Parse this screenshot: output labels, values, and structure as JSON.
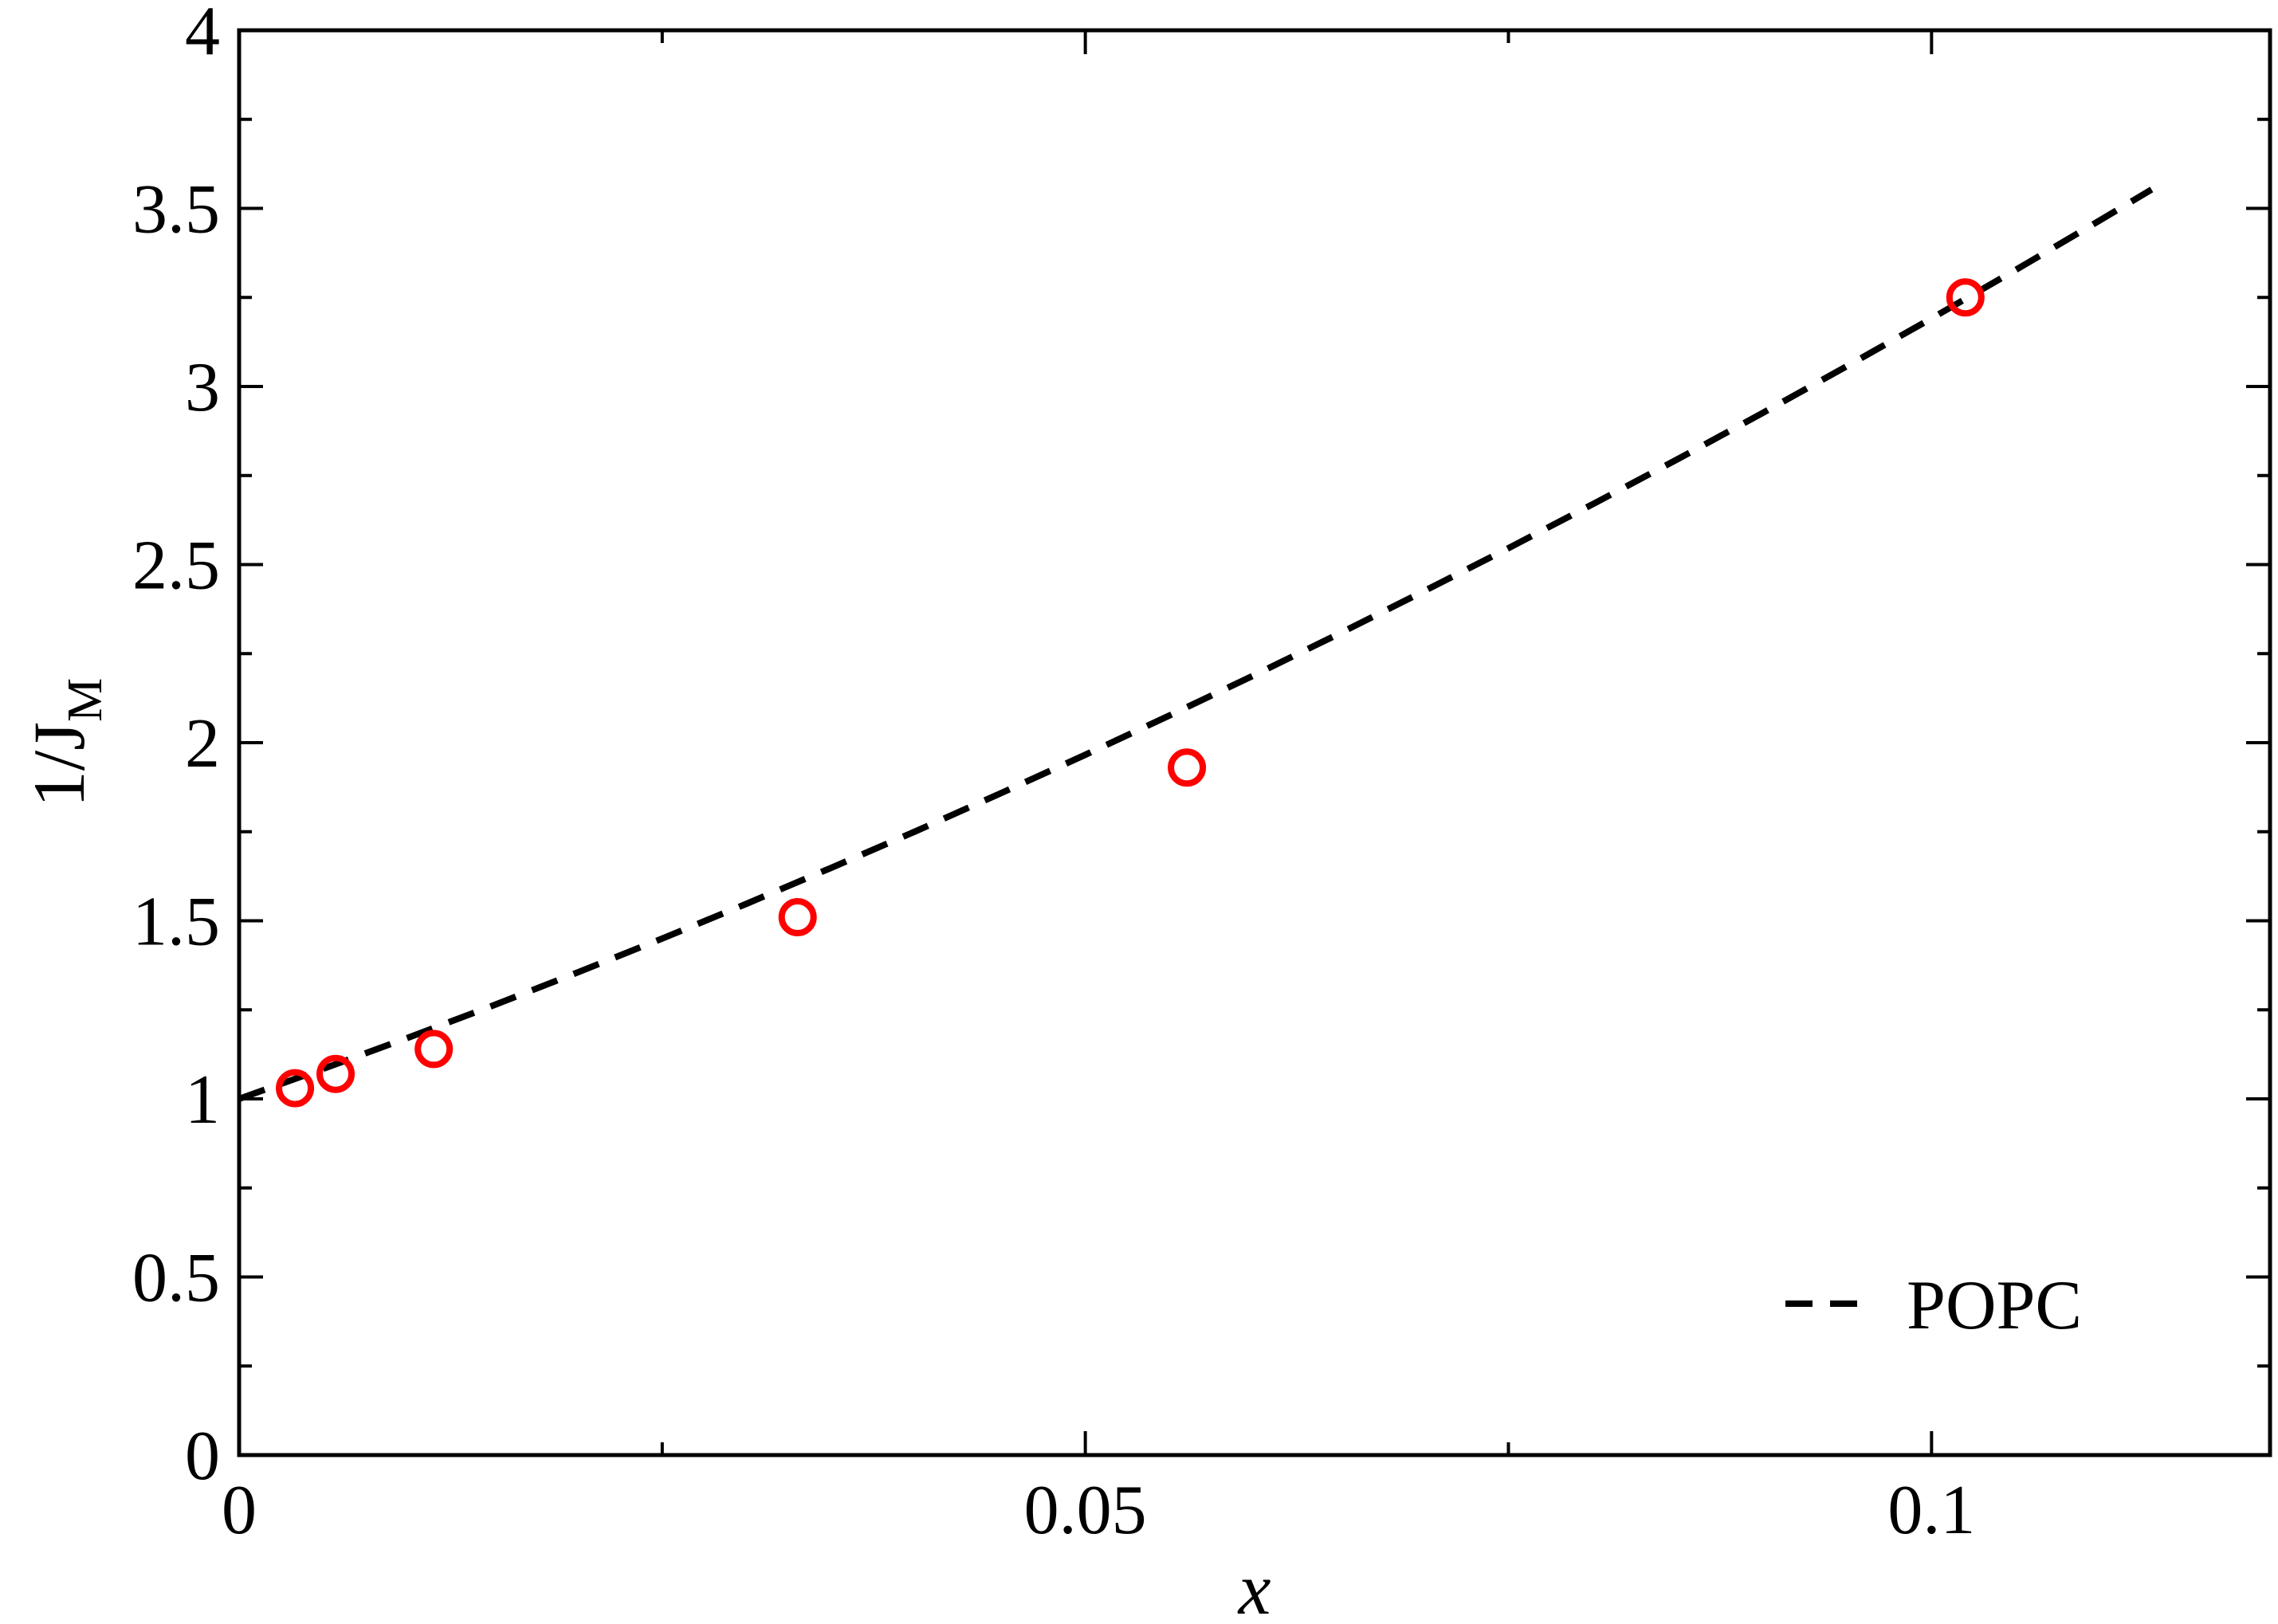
{
  "chart_data": {
    "type": "scatter",
    "title": "",
    "xlabel": "x",
    "ylabel_main": "1/J",
    "ylabel_sub": "M",
    "xlim": [
      0,
      0.12
    ],
    "ylim": [
      0,
      4
    ],
    "x_ticks": [
      {
        "value": 0,
        "label": "0"
      },
      {
        "value": 0.05,
        "label": "0.05"
      },
      {
        "value": 0.1,
        "label": "0.1"
      }
    ],
    "x_minor_ticks": [
      0.025,
      0.075
    ],
    "y_ticks": [
      {
        "value": 0,
        "label": "0"
      },
      {
        "value": 0.5,
        "label": "0.5"
      },
      {
        "value": 1,
        "label": "1"
      },
      {
        "value": 1.5,
        "label": "1.5"
      },
      {
        "value": 2,
        "label": "2"
      },
      {
        "value": 2.5,
        "label": "2.5"
      },
      {
        "value": 3,
        "label": "3"
      },
      {
        "value": 3.5,
        "label": "3.5"
      },
      {
        "value": 4,
        "label": "4"
      }
    ],
    "y_minor_ticks": [
      0.25,
      0.75,
      1.25,
      1.75,
      2.25,
      2.75,
      3.25,
      3.75
    ],
    "grid": false,
    "legend_position": "bottom-right",
    "series": [
      {
        "name": "POPC",
        "style": "dashed-line",
        "color": "#000000",
        "x": [
          0,
          0.005,
          0.01,
          0.015,
          0.02,
          0.025,
          0.03,
          0.035,
          0.04,
          0.045,
          0.05,
          0.055,
          0.06,
          0.065,
          0.07,
          0.075,
          0.08,
          0.085,
          0.09,
          0.095,
          0.1,
          0.105,
          0.11,
          0.113
        ],
        "y": [
          1.0,
          1.085,
          1.172,
          1.262,
          1.355,
          1.45,
          1.548,
          1.649,
          1.752,
          1.858,
          1.966,
          2.077,
          2.19,
          2.306,
          2.425,
          2.546,
          2.67,
          2.796,
          2.925,
          3.057,
          3.191,
          3.328,
          3.468,
          3.553
        ]
      },
      {
        "style": "open-circle",
        "color": "#ff0000",
        "x": [
          0.0033,
          0.0057,
          0.0115,
          0.033,
          0.056,
          0.102
        ],
        "y": [
          1.03,
          1.07,
          1.14,
          1.51,
          1.93,
          3.25
        ]
      }
    ]
  }
}
